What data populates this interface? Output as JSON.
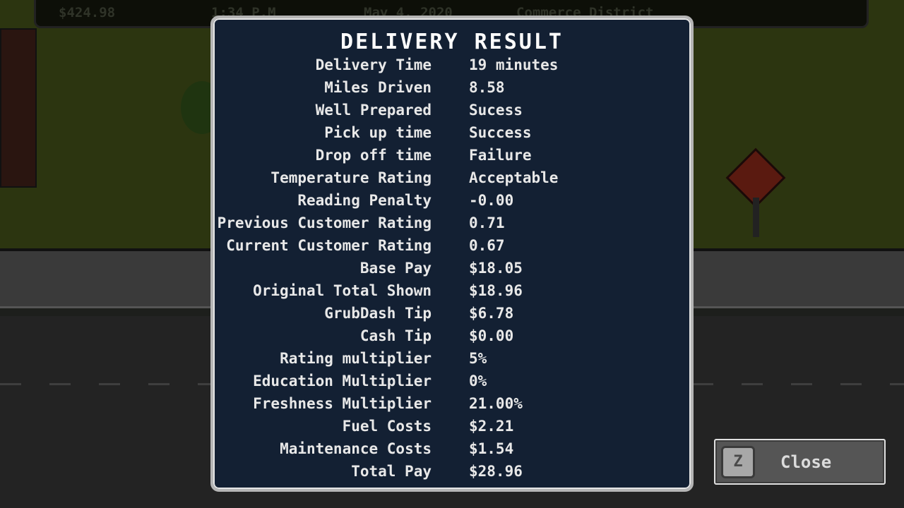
{
  "hud": {
    "money": "$424.98",
    "time": "1:34 P.M",
    "date": "May 4, 2020",
    "district": "Commerce District"
  },
  "dialog": {
    "title": "DELIVERY RESULT",
    "rows": [
      {
        "label": "Delivery Time",
        "value": "19 minutes"
      },
      {
        "label": "Miles Driven",
        "value": "8.58"
      },
      {
        "label": "Well Prepared",
        "value": "Sucess"
      },
      {
        "label": "Pick up time",
        "value": "Success"
      },
      {
        "label": "Drop off time",
        "value": "Failure"
      },
      {
        "label": "Temperature Rating",
        "value": "Acceptable"
      },
      {
        "label": "Reading Penalty",
        "value": "-0.00"
      },
      {
        "label": "Previous Customer Rating",
        "value": "0.71"
      },
      {
        "label": "Current Customer Rating",
        "value": "0.67"
      },
      {
        "label": "Base Pay",
        "value": "$18.05"
      },
      {
        "label": "Original Total Shown",
        "value": "$18.96"
      },
      {
        "label": "GrubDash Tip",
        "value": "$6.78"
      },
      {
        "label": "Cash Tip",
        "value": "$0.00"
      },
      {
        "label": "Rating multiplier",
        "value": "5%"
      },
      {
        "label": "Education Multiplier",
        "value": "0%"
      },
      {
        "label": "Freshness Multiplier",
        "value": "21.00%"
      },
      {
        "label": "Fuel Costs",
        "value": "$2.21"
      },
      {
        "label": "Maintenance Costs",
        "value": "$1.54"
      },
      {
        "label": "Total Pay",
        "value": "$28.96"
      }
    ]
  },
  "close_button": {
    "key": "Z",
    "label": "Close"
  }
}
